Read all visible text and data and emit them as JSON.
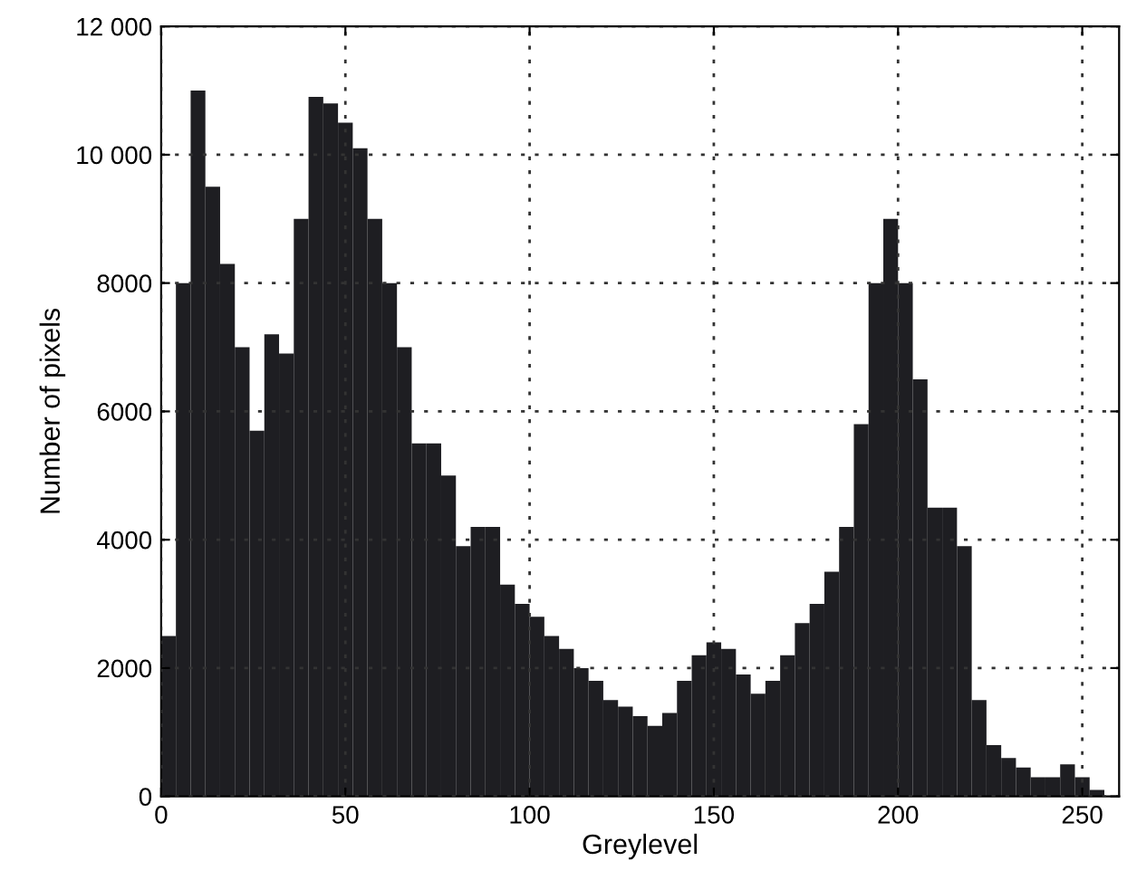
{
  "chart_data": {
    "type": "histogram",
    "xlabel": "Greylevel",
    "ylabel": "Number of pixels",
    "bins": [
      0,
      4,
      8,
      12,
      16,
      20,
      24,
      28,
      32,
      36,
      40,
      44,
      48,
      52,
      56,
      60,
      64,
      68,
      72,
      76,
      80,
      84,
      88,
      92,
      96,
      100,
      104,
      108,
      112,
      116,
      120,
      124,
      128,
      132,
      136,
      140,
      144,
      148,
      152,
      156,
      160,
      164,
      168,
      172,
      176,
      180,
      184,
      188,
      192,
      196,
      200,
      204,
      208,
      212,
      216,
      220,
      224,
      228,
      232,
      236,
      240,
      244,
      248,
      252,
      256
    ],
    "values": [
      2500,
      8000,
      11000,
      9500,
      8300,
      7000,
      5700,
      7200,
      6900,
      9000,
      10900,
      10800,
      10500,
      10100,
      9000,
      8000,
      7000,
      5500,
      5500,
      5000,
      3900,
      4200,
      4200,
      3300,
      3000,
      2800,
      2500,
      2300,
      2000,
      1800,
      1500,
      1400,
      1250,
      1100,
      1300,
      1800,
      2200,
      2400,
      2300,
      1900,
      1600,
      1800,
      2200,
      2700,
      3000,
      3500,
      4200,
      5800,
      8000,
      9000,
      8000,
      6500,
      4500,
      4500,
      3900,
      1500,
      800,
      600,
      450,
      300,
      300,
      500,
      300,
      100
    ],
    "color": "#1e1e22",
    "xlim": [
      0,
      260
    ],
    "xticks": [
      0,
      50,
      100,
      150,
      200,
      250
    ],
    "ylim": [
      0,
      12000
    ],
    "yticks": [
      0,
      2000,
      4000,
      6000,
      8000,
      {
        "value": 10000,
        "label": "10 000"
      },
      {
        "value": 12000,
        "label": "12 000"
      }
    ],
    "grid": true
  }
}
